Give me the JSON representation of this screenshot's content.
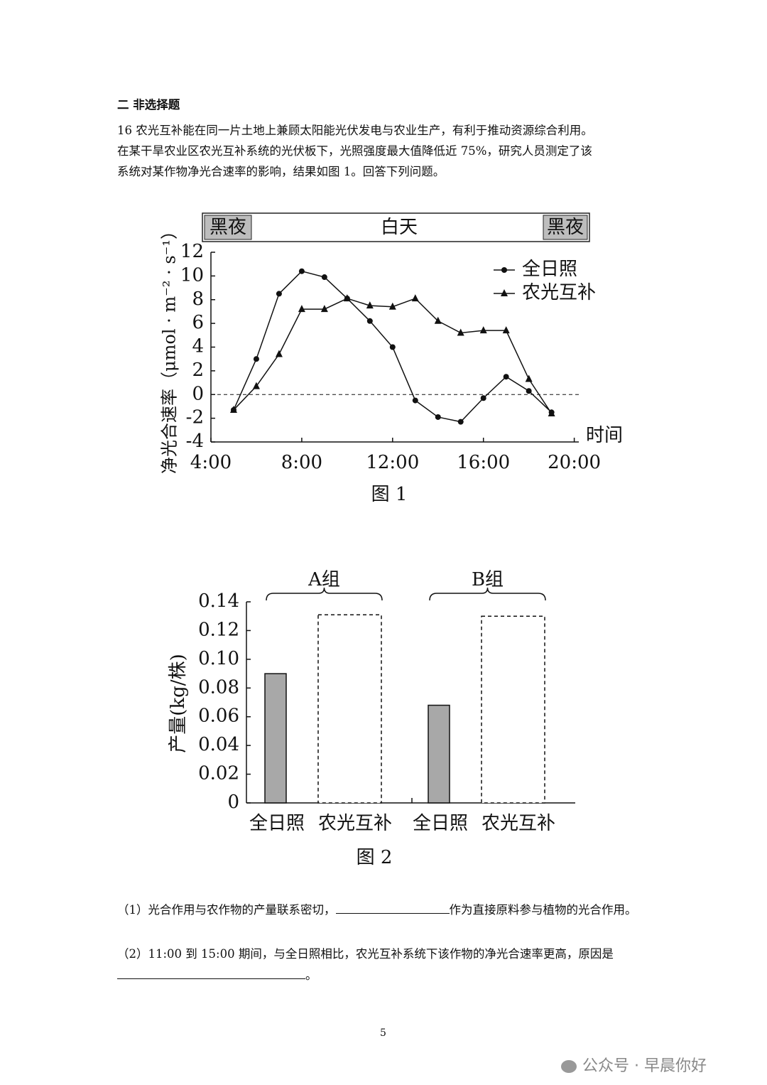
{
  "section_title": "二 非选择题",
  "question_lines": [
    "16 农光互补能在同一片土地上兼顾太阳能光伏发电与农业生产，有利于推动资源综合利用。",
    "在某干旱农业区农光互补系统的光伏板下，光照强度最大值降低近 75%，研究人员测定了该",
    "系统对某作物净光合速率的影响，结果如图 1。回答下列问题。"
  ],
  "chart_data": [
    {
      "type": "line",
      "caption": "图 1",
      "ylabel": "净光合速率（μmol · m⁻² · s⁻¹）",
      "xlabel": "时间",
      "period_labels": [
        "黑夜",
        "白天",
        "黑夜"
      ],
      "x": [
        5,
        6,
        7,
        8,
        9,
        10,
        11,
        12,
        13,
        14,
        15,
        16,
        17,
        18,
        19
      ],
      "series": [
        {
          "name": "全日照",
          "color": "#111111",
          "marker": "circle",
          "values": [
            -1.3,
            3.0,
            8.5,
            10.4,
            9.9,
            8.1,
            6.2,
            4.0,
            -0.5,
            -1.9,
            -2.3,
            -0.3,
            1.5,
            0.3,
            -1.5
          ]
        },
        {
          "name": "农光互补",
          "color": "#111111",
          "marker": "triangle",
          "values": [
            -1.3,
            0.7,
            3.4,
            7.2,
            7.2,
            8.1,
            7.5,
            7.4,
            8.1,
            6.2,
            5.2,
            5.4,
            5.4,
            1.3,
            -1.6
          ]
        }
      ],
      "xlim": [
        4,
        20.2
      ],
      "xticks": [
        {
          "value": 4,
          "label": "4:00"
        },
        {
          "value": 8,
          "label": "8:00"
        },
        {
          "value": 12,
          "label": "12:00"
        },
        {
          "value": 16,
          "label": "16:00"
        },
        {
          "value": 20,
          "label": "20:00"
        }
      ],
      "ylim": [
        -4,
        12
      ],
      "yticks": [
        -4,
        -2,
        0,
        2,
        4,
        6,
        8,
        10,
        12
      ],
      "reference_y": 0,
      "legend": "upper right"
    },
    {
      "type": "bar",
      "caption": "图 2",
      "ylabel": "产量(kg/株)",
      "groups": [
        "A组",
        "B组"
      ],
      "categories": [
        "全日照",
        "农光互补",
        "全日照",
        "农光互补"
      ],
      "values": [
        0.09,
        0.131,
        0.068,
        0.13
      ],
      "colors": [
        "#a8a8a8",
        "#ffffff",
        "#a8a8a8",
        "#ffffff"
      ],
      "dashed": [
        false,
        true,
        false,
        true
      ],
      "ylim": [
        0,
        0.14
      ],
      "yticks": [
        0,
        0.02,
        0.04,
        0.06,
        0.08,
        {
          "value": 0.1,
          "label": "0.10"
        },
        0.12,
        0.14
      ]
    }
  ],
  "subquestions": [
    {
      "parts": [
        "（1）光合作用与农作物的产量联系密切，",
        "作为直接原料参与植物的光合作用。"
      ]
    },
    {
      "parts": [
        "（2）11:00 到 15:00 期间，与全日照相比，农光互补系统下该作物的净光合速率更高，原因是",
        "。"
      ]
    }
  ],
  "page_number": "5",
  "watermark": "公众号 · 早晨你好"
}
